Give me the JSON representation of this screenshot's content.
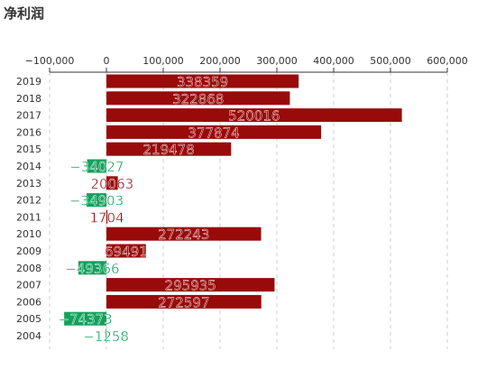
{
  "title": "净利润",
  "colors": {
    "positive": "#990a0a",
    "negative": "#12a15c",
    "grid": "#cccccc",
    "axis": "#333333"
  },
  "chart_data": {
    "type": "bar",
    "orientation": "horizontal",
    "title": "净利润",
    "categories": [
      "2019",
      "2018",
      "2017",
      "2016",
      "2015",
      "2014",
      "2013",
      "2012",
      "2011",
      "2010",
      "2009",
      "2008",
      "2007",
      "2006",
      "2005",
      "2004"
    ],
    "values": [
      338359,
      322868,
      520016,
      377874,
      219478,
      -34027,
      20063,
      -34903,
      1704,
      272243,
      69491,
      -49366,
      295935,
      272597,
      -74373,
      -1258
    ],
    "xlim": [
      -100000,
      600000
    ],
    "xticks": [
      -100000,
      0,
      100000,
      200000,
      300000,
      400000,
      500000,
      600000
    ],
    "xtick_labels": [
      "−100,000",
      "0",
      "100,000",
      "200,000",
      "300,000",
      "400,000",
      "500,000",
      "600,000"
    ],
    "x_axis_position": "top",
    "grid": "vertical dashed",
    "data_labels": true
  }
}
